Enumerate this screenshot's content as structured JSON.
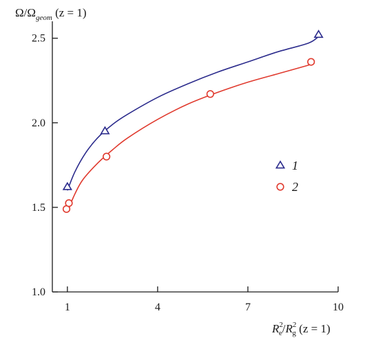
{
  "chart_data": {
    "type": "line",
    "ylabel": {
      "main": "Ω/Ω",
      "sub": "geom",
      "tail": " (z = 1)"
    },
    "xlabel": {
      "r1": "R",
      "r1sup": "2",
      "r1sub": "e",
      "slash": "/",
      "r2": "R",
      "r2sup": "2",
      "r2sub": "g",
      "tail": " (z = 1)"
    },
    "xlim": [
      0.5,
      10
    ],
    "ylim": [
      1.0,
      2.6
    ],
    "xticks": [
      1,
      4,
      7,
      10
    ],
    "xtick_labels": [
      "1",
      "4",
      "7",
      "10"
    ],
    "yticks": [
      1.0,
      1.5,
      2.0,
      2.5
    ],
    "ytick_labels": [
      "1.0",
      "1.5",
      "2.0",
      "2.5"
    ],
    "grid": false,
    "legend_position": "right-middle",
    "series": [
      {
        "name": "1",
        "marker": "triangle",
        "color": "#2b2b8c",
        "points": [
          [
            1.0,
            1.62
          ],
          [
            2.25,
            1.95
          ],
          [
            9.35,
            2.52
          ]
        ],
        "curve": [
          [
            1.0,
            1.6
          ],
          [
            1.25,
            1.71
          ],
          [
            1.6,
            1.82
          ],
          [
            2.0,
            1.91
          ],
          [
            2.5,
            1.99
          ],
          [
            3.0,
            2.05
          ],
          [
            4.0,
            2.15
          ],
          [
            5.0,
            2.23
          ],
          [
            6.0,
            2.3
          ],
          [
            7.0,
            2.36
          ],
          [
            8.0,
            2.42
          ],
          [
            9.0,
            2.47
          ],
          [
            9.35,
            2.51
          ]
        ]
      },
      {
        "name": "2",
        "marker": "circle",
        "color": "#e03a2e",
        "points": [
          [
            0.97,
            1.49
          ],
          [
            1.05,
            1.525
          ],
          [
            2.3,
            1.8
          ],
          [
            5.75,
            2.17
          ],
          [
            9.1,
            2.36
          ]
        ],
        "curve": [
          [
            1.0,
            1.47
          ],
          [
            1.2,
            1.56
          ],
          [
            1.5,
            1.66
          ],
          [
            2.0,
            1.76
          ],
          [
            2.5,
            1.84
          ],
          [
            3.0,
            1.91
          ],
          [
            4.0,
            2.02
          ],
          [
            5.0,
            2.11
          ],
          [
            6.0,
            2.18
          ],
          [
            7.0,
            2.24
          ],
          [
            8.0,
            2.29
          ],
          [
            9.0,
            2.34
          ],
          [
            9.1,
            2.35
          ]
        ]
      }
    ]
  }
}
